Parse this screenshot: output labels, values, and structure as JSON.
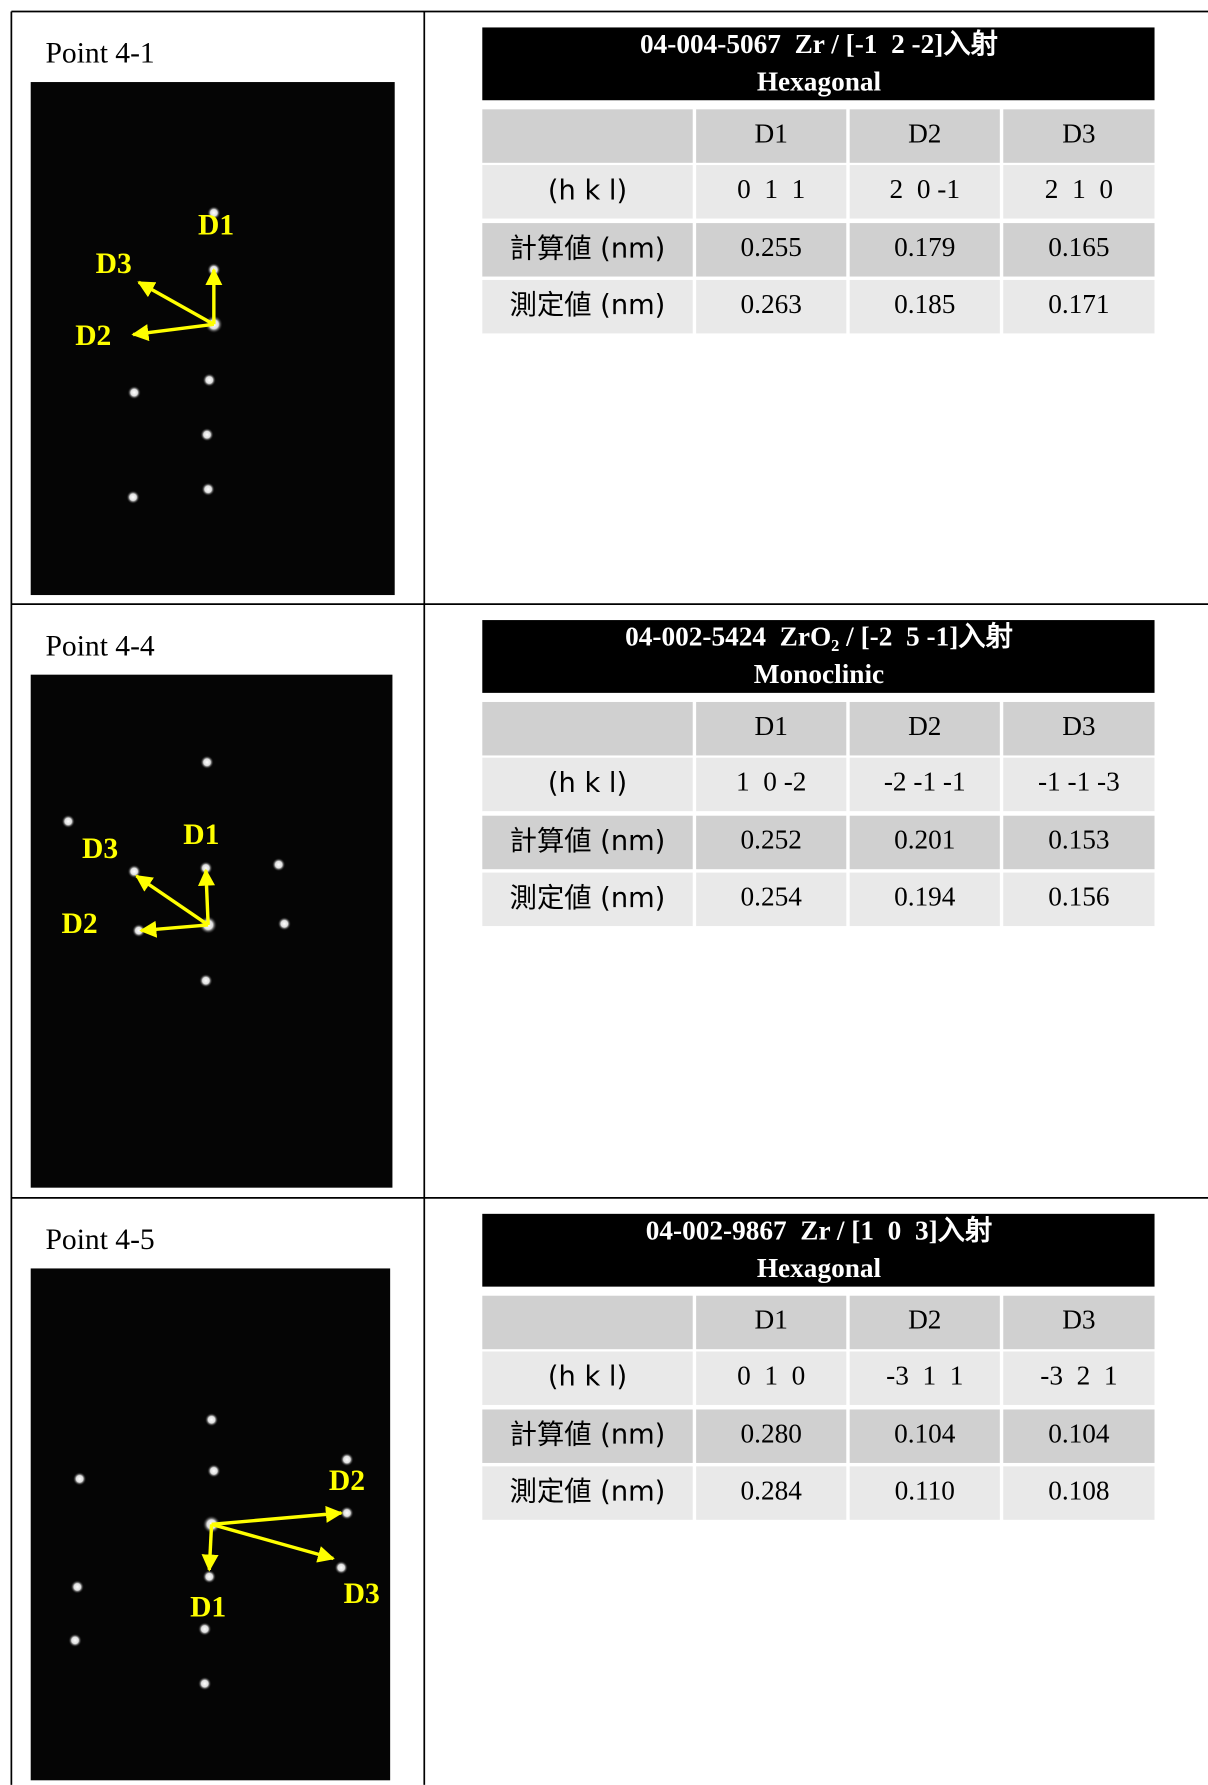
{
  "panels": [
    {
      "point": "Point 4-1",
      "image_labels": [
        "D1",
        "D2",
        "D3"
      ],
      "table": {
        "title": "04-004-5067  Zr / [-1  2 -2]入射",
        "subtitle": "Hexagonal",
        "header": [
          "D1",
          "D2",
          "D3"
        ],
        "rows": [
          [
            "(h k l)",
            "0  1  1",
            "2  0 -1",
            "2  1  0"
          ],
          [
            "計算値 (nm)",
            "0.255",
            "0.179",
            "0.165"
          ],
          [
            "測定値 (nm)",
            "0.263",
            "0.185",
            "0.171"
          ]
        ]
      }
    },
    {
      "point": "Point 4-4",
      "image_labels": [
        "D1",
        "D2",
        "D3"
      ],
      "table": {
        "title": "04-002-5424  ZrO₂ / [-2  5 -1]入射",
        "subtitle": "Monoclinic",
        "header": [
          "D1",
          "D2",
          "D3"
        ],
        "rows": [
          [
            "(h k l)",
            "1  0 -2",
            "-2 -1 -1",
            "-1 -1 -3"
          ],
          [
            "計算値 (nm)",
            "0.252",
            "0.201",
            "0.153"
          ],
          [
            "測定値 (nm)",
            "0.254",
            "0.194",
            "0.156"
          ]
        ]
      }
    },
    {
      "point": "Point 4-5",
      "image_labels": [
        "D1",
        "D2",
        "D3"
      ],
      "table": {
        "title": "04-002-9867  Zr / [1  0  3]入射",
        "subtitle": "Hexagonal",
        "header": [
          "D1",
          "D2",
          "D3"
        ],
        "rows": [
          [
            "(h k l)",
            "0  1  0",
            "-3  1  1",
            "-3  2  1"
          ],
          [
            "計算値 (nm)",
            "0.280",
            "0.104",
            "0.104"
          ],
          [
            "測定値 (nm)",
            "0.284",
            "0.110",
            "0.108"
          ]
        ]
      }
    }
  ]
}
